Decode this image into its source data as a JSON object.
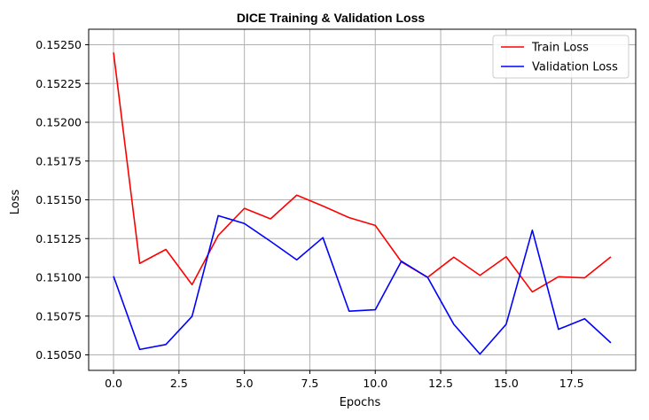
{
  "chart_data": {
    "type": "line",
    "title": "DICE Training & Validation Loss",
    "xlabel": "Epochs",
    "ylabel": "Loss",
    "xlim": [
      -0.95,
      19.95
    ],
    "ylim": [
      0.1504,
      0.1526
    ],
    "x_ticks": [
      0.0,
      2.5,
      5.0,
      7.5,
      10.0,
      12.5,
      15.0,
      17.5
    ],
    "x_tick_labels": [
      "0.0",
      "2.5",
      "5.0",
      "7.5",
      "10.0",
      "12.5",
      "15.0",
      "17.5"
    ],
    "y_ticks": [
      0.1505,
      0.15075,
      0.151,
      0.15125,
      0.1515,
      0.15175,
      0.152,
      0.15225,
      0.1525
    ],
    "y_tick_labels": [
      "0.15050",
      "0.15075",
      "0.15100",
      "0.15125",
      "0.15150",
      "0.15175",
      "0.15200",
      "0.15225",
      "0.15250"
    ],
    "grid": true,
    "legend_position": "top-right",
    "x": [
      0,
      1,
      2,
      3,
      4,
      5,
      6,
      7,
      8,
      9,
      10,
      11,
      12,
      13,
      14,
      15,
      16,
      17,
      18,
      19
    ],
    "series": [
      {
        "name": "Train Loss",
        "color": "#ff0000",
        "values": [
          0.15245,
          0.15109,
          0.15118,
          0.150953,
          0.15127,
          0.151445,
          0.151377,
          0.15153,
          0.15146,
          0.151385,
          0.151335,
          0.1511,
          0.151,
          0.15113,
          0.151013,
          0.151133,
          0.150906,
          0.151004,
          0.150997,
          0.151132
        ]
      },
      {
        "name": "Validation Loss",
        "color": "#0000ff",
        "values": [
          0.151007,
          0.150535,
          0.150567,
          0.150748,
          0.151398,
          0.151347,
          0.151232,
          0.151113,
          0.151256,
          0.150782,
          0.150791,
          0.151104,
          0.151,
          0.150697,
          0.150505,
          0.150697,
          0.151304,
          0.150665,
          0.150733,
          0.150578
        ]
      }
    ]
  }
}
